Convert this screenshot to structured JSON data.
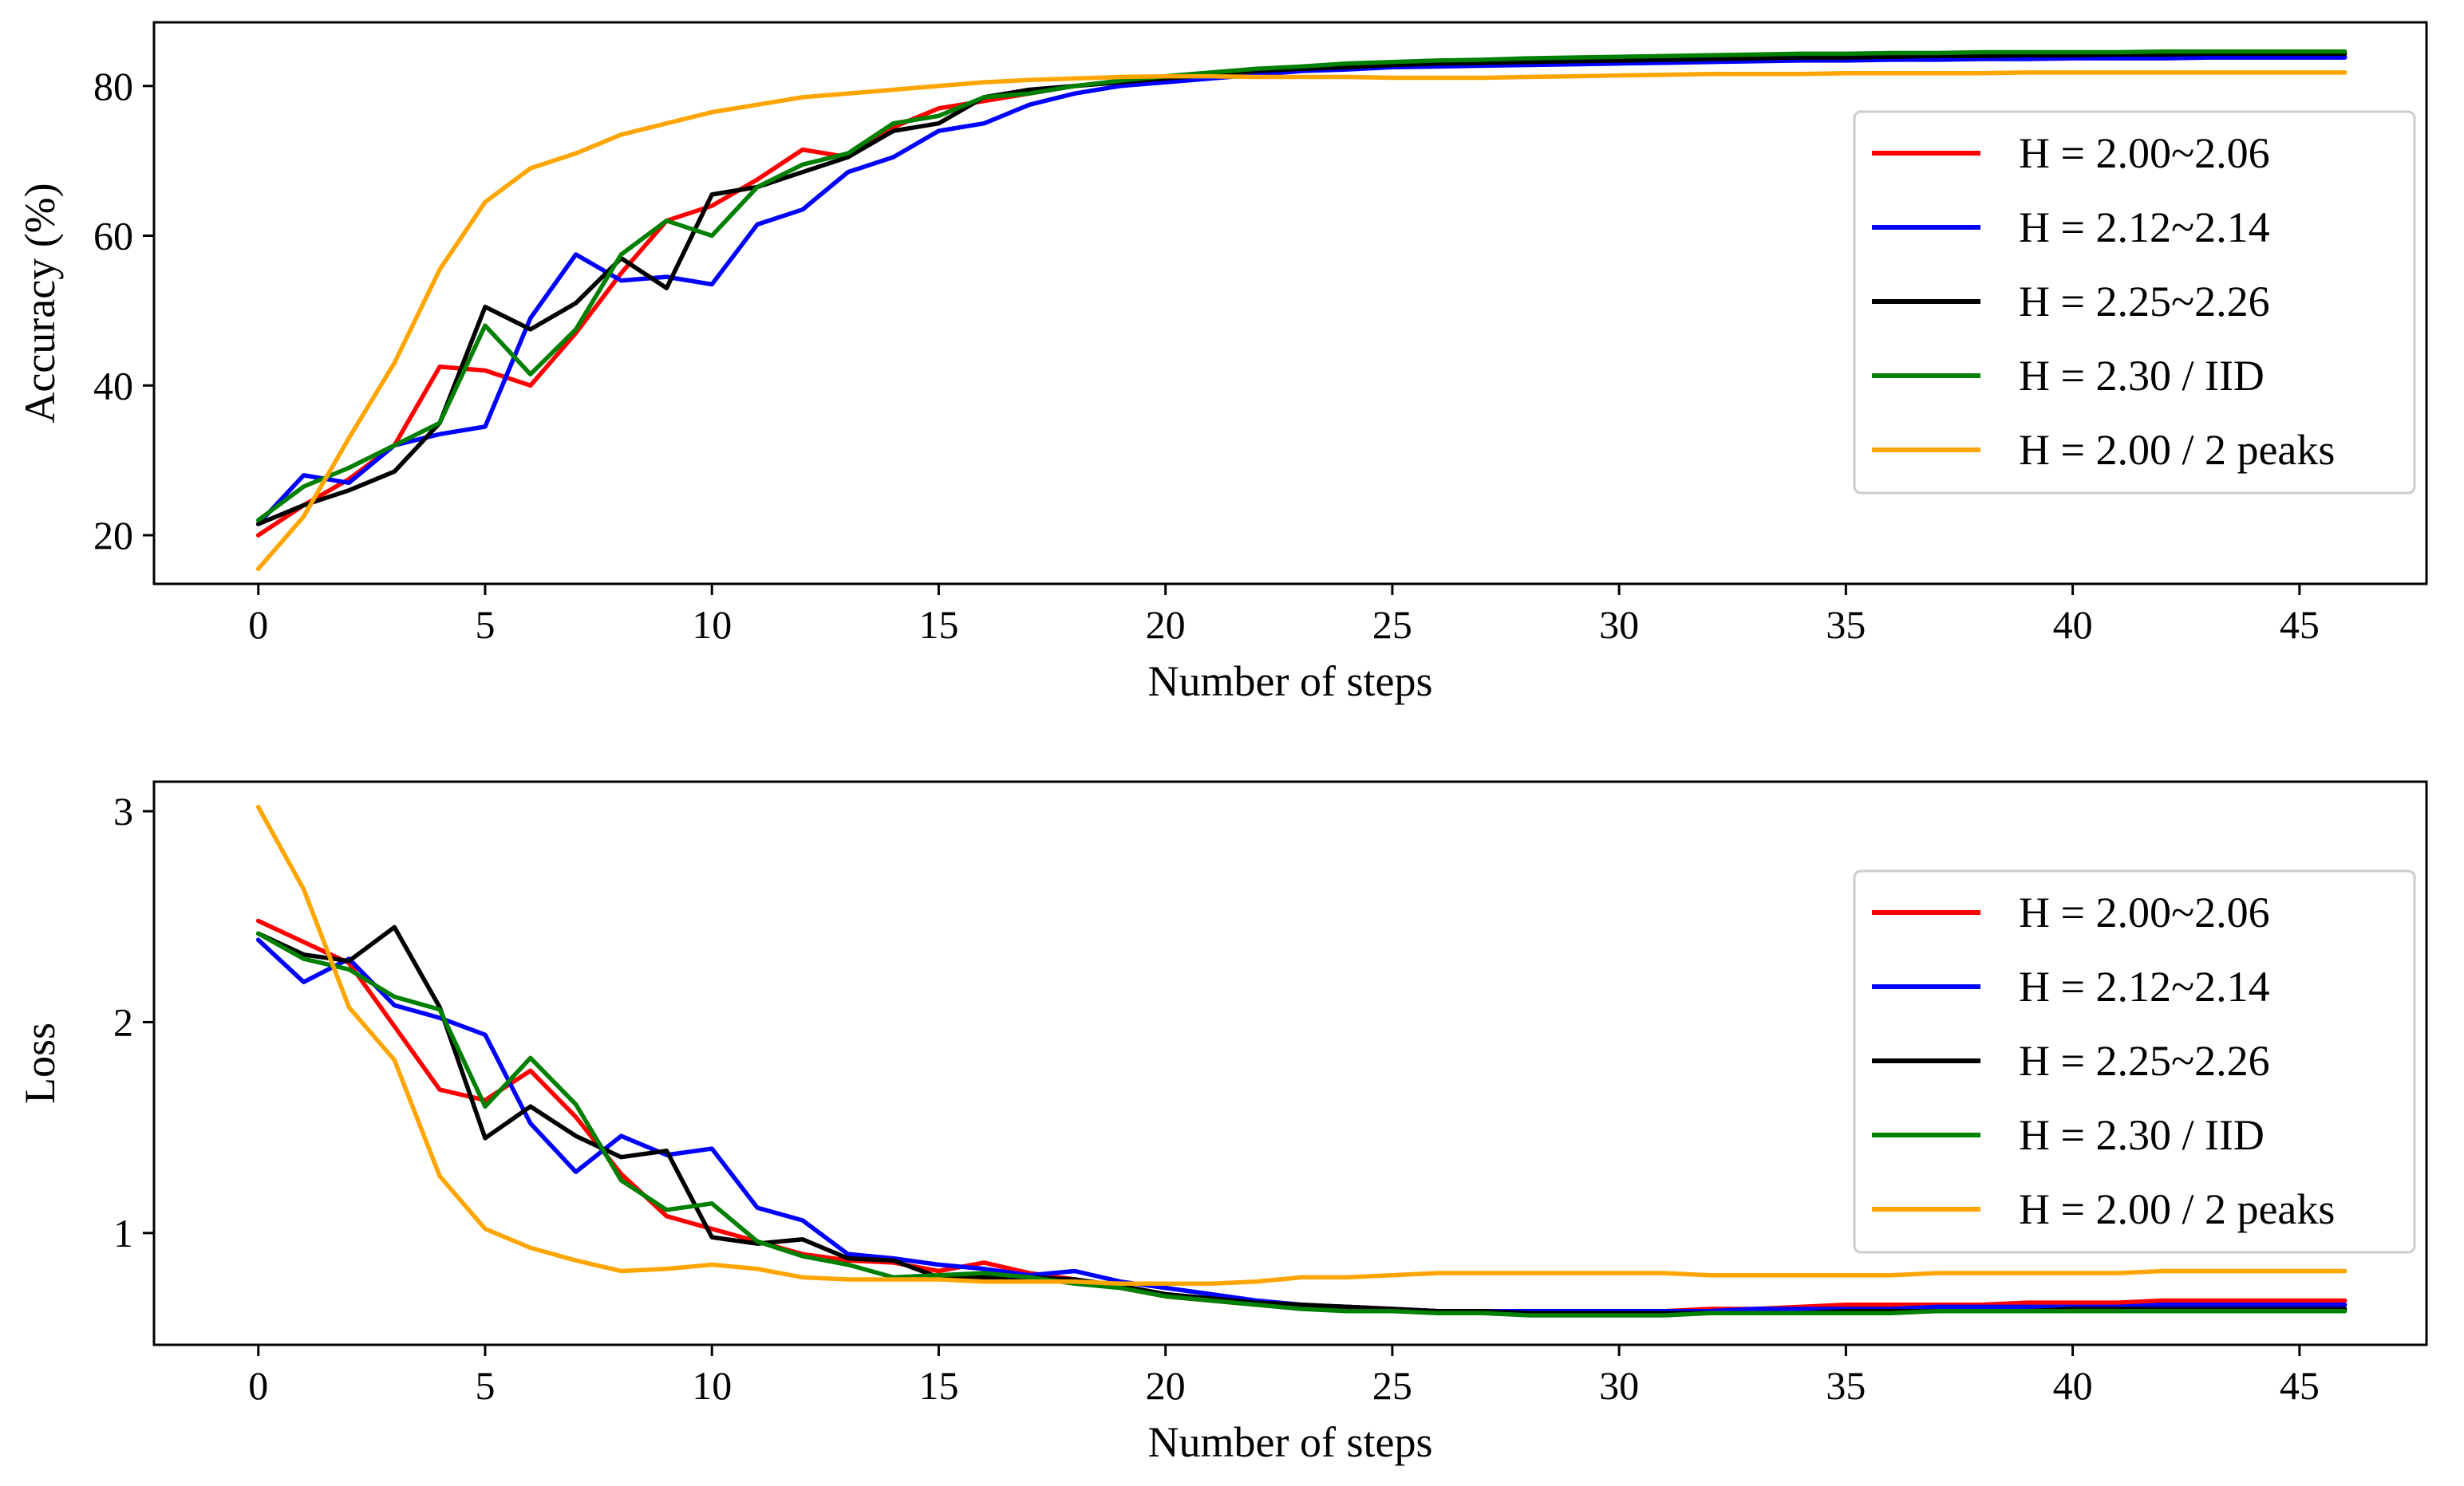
{
  "chart_data": [
    {
      "type": "line",
      "title": "",
      "xlabel": "Number of steps",
      "ylabel": "Accuracy (%)",
      "xlim": [
        -2.3,
        47.8
      ],
      "ylim": [
        13.5,
        88.5
      ],
      "xticks": [
        0,
        5,
        10,
        15,
        20,
        25,
        30,
        35,
        40,
        45
      ],
      "yticks": [
        20,
        40,
        60,
        80
      ],
      "legend_position": "center-right",
      "grid": false,
      "series": [
        {
          "name": "H = 2.00~2.06",
          "color": "#ff0000",
          "values": [
            20.0,
            24.0,
            27.5,
            32.0,
            42.5,
            42.0,
            40.0,
            47.0,
            55.0,
            62.0,
            64.0,
            67.5,
            71.5,
            70.5,
            74.5,
            77.0,
            78.0,
            79.0,
            80.0,
            80.5,
            81.0,
            81.5,
            82.0,
            82.3,
            82.5,
            82.7,
            82.8,
            82.9,
            83.0,
            83.0,
            83.1,
            83.2,
            83.3,
            83.4,
            83.5,
            83.5,
            83.6,
            83.6,
            83.7,
            83.7,
            83.8,
            83.8,
            83.8,
            83.9,
            83.9,
            83.9,
            83.9
          ]
        },
        {
          "name": "H = 2.12~2.14",
          "color": "#0000ff",
          "values": [
            21.5,
            28.0,
            27.0,
            32.0,
            33.5,
            34.5,
            49.0,
            57.5,
            54.0,
            54.5,
            53.5,
            61.5,
            63.5,
            68.5,
            70.5,
            74.0,
            75.0,
            77.5,
            79.0,
            80.0,
            80.5,
            81.0,
            81.5,
            82.0,
            82.2,
            82.5,
            82.6,
            82.7,
            82.8,
            82.9,
            83.0,
            83.1,
            83.2,
            83.3,
            83.4,
            83.4,
            83.5,
            83.5,
            83.6,
            83.6,
            83.7,
            83.7,
            83.7,
            83.8,
            83.8,
            83.8,
            83.8
          ]
        },
        {
          "name": "H = 2.25~2.26",
          "color": "#000000",
          "values": [
            21.5,
            24.0,
            26.0,
            28.5,
            35.0,
            50.5,
            47.5,
            51.0,
            57.0,
            53.0,
            65.5,
            66.5,
            68.5,
            70.5,
            74.0,
            75.0,
            78.5,
            79.5,
            80.0,
            80.5,
            81.0,
            81.5,
            82.0,
            82.3,
            82.5,
            82.8,
            83.0,
            83.1,
            83.2,
            83.3,
            83.4,
            83.5,
            83.6,
            83.7,
            83.8,
            83.8,
            83.9,
            84.0,
            84.0,
            84.1,
            84.1,
            84.2,
            84.2,
            84.3,
            84.3,
            84.3,
            84.3
          ]
        },
        {
          "name": "H = 2.30 / IID",
          "color": "#008000",
          "values": [
            22.0,
            26.5,
            29.0,
            32.0,
            35.0,
            48.0,
            41.5,
            47.5,
            57.5,
            62.0,
            60.0,
            66.5,
            69.5,
            71.0,
            75.0,
            76.0,
            78.5,
            79.0,
            80.0,
            80.7,
            81.3,
            81.8,
            82.3,
            82.6,
            83.0,
            83.2,
            83.4,
            83.5,
            83.7,
            83.8,
            83.9,
            84.0,
            84.1,
            84.2,
            84.3,
            84.3,
            84.4,
            84.4,
            84.5,
            84.5,
            84.5,
            84.5,
            84.6,
            84.6,
            84.6,
            84.6,
            84.6
          ]
        },
        {
          "name": "H = 2.00 / 2 peaks",
          "color": "#ffa500",
          "values": [
            15.5,
            22.5,
            33.0,
            43.0,
            55.5,
            64.5,
            69.0,
            71.0,
            73.5,
            75.0,
            76.5,
            77.5,
            78.5,
            79.0,
            79.5,
            80.0,
            80.5,
            80.8,
            81.0,
            81.2,
            81.3,
            81.3,
            81.2,
            81.2,
            81.2,
            81.1,
            81.1,
            81.1,
            81.2,
            81.3,
            81.4,
            81.5,
            81.6,
            81.6,
            81.6,
            81.7,
            81.7,
            81.7,
            81.7,
            81.8,
            81.8,
            81.8,
            81.8,
            81.8,
            81.8,
            81.8,
            81.8
          ]
        }
      ]
    },
    {
      "type": "line",
      "title": "",
      "xlabel": "Number of steps",
      "ylabel": "Loss",
      "xlim": [
        -2.3,
        47.8
      ],
      "ylim": [
        0.47,
        3.14
      ],
      "xticks": [
        0,
        5,
        10,
        15,
        20,
        25,
        30,
        35,
        40,
        45
      ],
      "yticks": [
        1,
        2,
        3
      ],
      "legend_position": "center-right",
      "grid": false,
      "series": [
        {
          "name": "H = 2.00~2.06",
          "color": "#ff0000",
          "values": [
            2.48,
            2.38,
            2.28,
            1.98,
            1.68,
            1.63,
            1.77,
            1.55,
            1.28,
            1.08,
            1.02,
            0.96,
            0.9,
            0.87,
            0.86,
            0.82,
            0.86,
            0.81,
            0.78,
            0.74,
            0.7,
            0.68,
            0.66,
            0.65,
            0.65,
            0.64,
            0.63,
            0.63,
            0.63,
            0.63,
            0.63,
            0.63,
            0.64,
            0.64,
            0.65,
            0.66,
            0.66,
            0.66,
            0.66,
            0.67,
            0.67,
            0.67,
            0.68,
            0.68,
            0.68,
            0.68,
            0.68
          ]
        },
        {
          "name": "H = 2.12~2.14",
          "color": "#0000ff",
          "values": [
            2.39,
            2.19,
            2.3,
            2.08,
            2.02,
            1.94,
            1.52,
            1.29,
            1.46,
            1.37,
            1.4,
            1.12,
            1.06,
            0.9,
            0.88,
            0.85,
            0.83,
            0.8,
            0.82,
            0.77,
            0.74,
            0.71,
            0.68,
            0.66,
            0.65,
            0.64,
            0.63,
            0.63,
            0.63,
            0.63,
            0.63,
            0.63,
            0.63,
            0.64,
            0.64,
            0.64,
            0.64,
            0.65,
            0.65,
            0.65,
            0.65,
            0.65,
            0.66,
            0.66,
            0.66,
            0.66,
            0.66
          ]
        },
        {
          "name": "H = 2.25~2.26",
          "color": "#000000",
          "values": [
            2.42,
            2.32,
            2.29,
            2.45,
            2.07,
            1.45,
            1.6,
            1.46,
            1.36,
            1.39,
            0.98,
            0.95,
            0.97,
            0.88,
            0.87,
            0.79,
            0.79,
            0.79,
            0.78,
            0.75,
            0.71,
            0.69,
            0.67,
            0.66,
            0.65,
            0.64,
            0.63,
            0.63,
            0.62,
            0.62,
            0.62,
            0.62,
            0.62,
            0.62,
            0.62,
            0.63,
            0.63,
            0.63,
            0.63,
            0.63,
            0.64,
            0.64,
            0.64,
            0.64,
            0.64,
            0.64,
            0.64
          ]
        },
        {
          "name": "H = 2.30 / IID",
          "color": "#008000",
          "values": [
            2.42,
            2.3,
            2.25,
            2.12,
            2.06,
            1.6,
            1.83,
            1.61,
            1.25,
            1.11,
            1.14,
            0.96,
            0.89,
            0.85,
            0.79,
            0.8,
            0.81,
            0.79,
            0.76,
            0.74,
            0.7,
            0.68,
            0.66,
            0.64,
            0.63,
            0.63,
            0.62,
            0.62,
            0.61,
            0.61,
            0.61,
            0.61,
            0.62,
            0.62,
            0.62,
            0.62,
            0.62,
            0.63,
            0.63,
            0.63,
            0.63,
            0.63,
            0.63,
            0.63,
            0.63,
            0.63,
            0.63
          ]
        },
        {
          "name": "H = 2.00 / 2 peaks",
          "color": "#ffa500",
          "values": [
            3.02,
            2.63,
            2.07,
            1.82,
            1.27,
            1.02,
            0.93,
            0.87,
            0.82,
            0.83,
            0.85,
            0.83,
            0.79,
            0.78,
            0.78,
            0.78,
            0.77,
            0.77,
            0.77,
            0.76,
            0.76,
            0.76,
            0.77,
            0.79,
            0.79,
            0.8,
            0.81,
            0.81,
            0.81,
            0.81,
            0.81,
            0.81,
            0.8,
            0.8,
            0.8,
            0.8,
            0.8,
            0.81,
            0.81,
            0.81,
            0.81,
            0.81,
            0.82,
            0.82,
            0.82,
            0.82,
            0.82
          ]
        }
      ]
    }
  ]
}
